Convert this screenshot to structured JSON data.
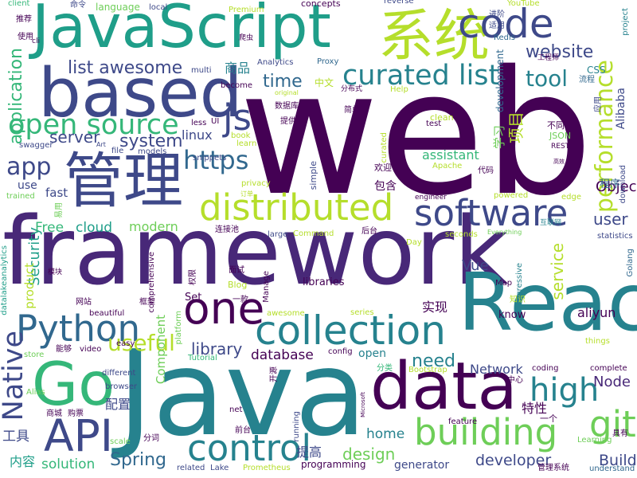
{
  "colors": {
    "background": "#ffffff",
    "palette": [
      "#440154",
      "#482878",
      "#3e4989",
      "#31688e",
      "#26828e",
      "#1f9e89",
      "#35b779",
      "#6ece58",
      "#b5de2b",
      "#fde725"
    ]
  },
  "words": [
    "web",
    "framework",
    "Java",
    "JavaScript",
    "React",
    "based",
    "data",
    "管理",
    "系统",
    "distributed",
    "building",
    "code",
    "collection",
    "Go",
    "API",
    "one",
    "Python",
    "control",
    "software",
    "git",
    "high",
    "curated list",
    "open source",
    "list awesome",
    "performance",
    "tool",
    "https",
    "website",
    "app",
    "js",
    "Native",
    "time",
    "useful",
    "Spring",
    "system",
    "Security",
    "Node",
    "server",
    "library",
    "database",
    "service",
    "application",
    "user",
    "项目",
    "商品",
    "need",
    "Object",
    "design",
    "Build",
    "developer",
    "solution",
    "modern",
    "cloud",
    "Free",
    "fast",
    "Vue",
    "aliyun",
    "assistant",
    "home",
    "Network",
    "Component",
    "实现",
    "特性",
    "提高",
    "配置",
    "工具",
    "内容",
    "程序",
    "Alibaba",
    "学习",
    "development",
    "product",
    "linux",
    "use",
    "open",
    "libraries",
    "know",
    "Set",
    "JSON",
    "YouTube",
    "Premium",
    "concepts",
    "language",
    "local",
    "reverse",
    "命令",
    "推荐",
    "使用",
    "client",
    "cli",
    "爬虫",
    "Analytics",
    "Proxy",
    "Redis",
    "适用",
    "进阶",
    "工程师",
    "project",
    "CSS",
    "流程",
    "multi",
    "less",
    "UI",
    "become",
    "中文",
    "分布式",
    "original",
    "Help",
    "数据库",
    "简单",
    "提供",
    "clean",
    "test",
    "不同",
    "应用",
    "swagger",
    "Art",
    "book",
    "learn",
    "curated",
    "REST",
    "file",
    "models",
    "snippets",
    "privacy",
    "欢迎",
    "simple",
    "代码",
    "Apache",
    "download",
    "高效",
    "trained",
    "订单",
    "包含",
    "engineer",
    "powered",
    "edge",
    "statistics",
    "易用",
    "连接池",
    "large",
    "Command",
    "seconds",
    "Day",
    "后台",
    "Everything",
    "互联网",
    "comprehensive",
    "模块",
    "Blog",
    "面试",
    "权限",
    "Manage",
    "一款",
    "progressive",
    "Map",
    "知识",
    "Golang",
    "datalakeanalytics",
    "网站",
    "beautiful",
    "awesome",
    "series",
    "框架",
    "platform",
    "video",
    "能够",
    "easy",
    "config",
    "store",
    "Tutorial",
    "开源",
    "things",
    "complete",
    "coding",
    "分类",
    "Bootstrap",
    "中心",
    "different",
    "browser",
    "Alias",
    "商城",
    "购票",
    "前台",
    "net",
    "Microsoft",
    "feature",
    "一个",
    "具有",
    "scale",
    "分词",
    "running",
    "programming",
    "generator",
    "Learning",
    "related",
    "Lake",
    "Prometheus",
    "管理系统",
    "understand"
  ]
}
